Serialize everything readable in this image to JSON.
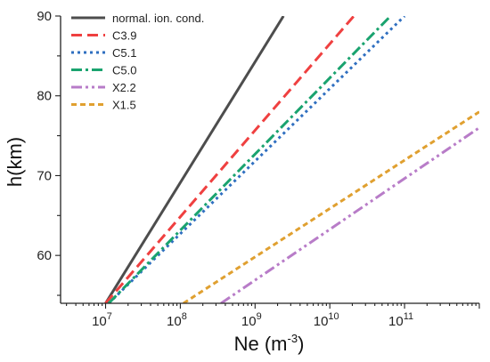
{
  "chart_data": {
    "type": "line",
    "title": "",
    "xlabel": "Ne (m",
    "xlabel_sup": "-3",
    "xlabel_close": ")",
    "ylabel": "h(km)",
    "xscale": "log",
    "xlim": [
      2500000,
      1000000000000
    ],
    "ylim": [
      54,
      90
    ],
    "grid": false,
    "legend_position": "top-left",
    "x_ticks": [
      {
        "value": 10000000,
        "base": "10",
        "exp": "7"
      },
      {
        "value": 100000000,
        "base": "10",
        "exp": "8"
      },
      {
        "value": 1000000000,
        "base": "10",
        "exp": "9"
      },
      {
        "value": 10000000000,
        "base": "10",
        "exp": "10"
      },
      {
        "value": 100000000000,
        "base": "10",
        "exp": "11"
      }
    ],
    "y_ticks": [
      {
        "value": 60,
        "label": "60"
      },
      {
        "value": 70,
        "label": "70"
      },
      {
        "value": 80,
        "label": "80"
      },
      {
        "value": 90,
        "label": "90"
      }
    ],
    "series": [
      {
        "name": "normal. ion. cond.",
        "color": "#4d4d4d",
        "dash": "solid",
        "points": [
          [
            10000000,
            54
          ],
          [
            2400000000,
            90
          ]
        ]
      },
      {
        "name": "C3.9",
        "color": "#ef4040",
        "dash": "dash",
        "points": [
          [
            10000000,
            54
          ],
          [
            21000000000,
            90
          ]
        ]
      },
      {
        "name": "C5.1",
        "color": "#2f6fc0",
        "dash": "dot",
        "points": [
          [
            11000000,
            54
          ],
          [
            100000000000,
            90
          ]
        ]
      },
      {
        "name": "C5.0",
        "color": "#1aa36f",
        "dash": "dashdot",
        "points": [
          [
            11000000,
            54
          ],
          [
            65000000000,
            90
          ]
        ]
      },
      {
        "name": "X2.2",
        "color": "#b87cc8",
        "dash": "dashdotdot",
        "points": [
          [
            350000000,
            54
          ],
          [
            1000000000000,
            76
          ]
        ]
      },
      {
        "name": "X1.5",
        "color": "#e0a030",
        "dash": "shortdash",
        "points": [
          [
            110000000,
            54
          ],
          [
            1000000000000,
            78
          ]
        ]
      }
    ]
  }
}
